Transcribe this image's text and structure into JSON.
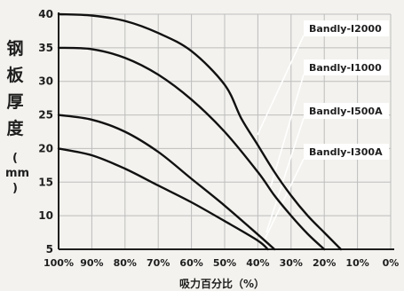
{
  "chart_data": {
    "type": "line",
    "xlabel": "吸力百分比（%）",
    "ylabel": "钢板厚度",
    "ylabel_unit": "mm",
    "x_ticks": [
      "100%",
      "90%",
      "80%",
      "70%",
      "60%",
      "50%",
      "40%",
      "30%",
      "20%",
      "10%",
      "0%"
    ],
    "y_ticks": [
      40,
      35,
      30,
      25,
      20,
      15,
      10,
      5
    ],
    "xlim": [
      100,
      0
    ],
    "ylim": [
      5,
      40
    ],
    "x_reversed": true,
    "grid": true,
    "series": [
      {
        "name": "Bandly-Ⅰ2000",
        "x": [
          100,
          90,
          80,
          70,
          60,
          50,
          45,
          40,
          35,
          30,
          25,
          20,
          15
        ],
        "y": [
          40,
          39.8,
          39,
          37.2,
          34.5,
          29.5,
          24.5,
          20.5,
          16.5,
          13,
          10,
          7.5,
          5
        ]
      },
      {
        "name": "Bandly-Ⅰ1000",
        "x": [
          100,
          90,
          80,
          70,
          60,
          50,
          40,
          35,
          30,
          25,
          20
        ],
        "y": [
          35,
          34.8,
          33.5,
          31,
          27.3,
          22.5,
          16.5,
          13,
          10,
          7.3,
          5
        ]
      },
      {
        "name": "Bandly-Ⅰ500A",
        "x": [
          100,
          90,
          80,
          70,
          60,
          50,
          40,
          35
        ],
        "y": [
          25,
          24.3,
          22.5,
          19.5,
          15.5,
          11.5,
          7.2,
          5
        ]
      },
      {
        "name": "Bandly-Ⅰ300A",
        "x": [
          100,
          90,
          80,
          70,
          60,
          50,
          40,
          37
        ],
        "y": [
          20,
          19,
          17,
          14.5,
          12,
          9.2,
          6.3,
          5
        ]
      }
    ]
  },
  "colors": {
    "background": "#f3f2ee",
    "grid": "#bdbdbd",
    "axis": "#1e1e1e",
    "line": "#111111",
    "label_box": "#ffffff"
  }
}
